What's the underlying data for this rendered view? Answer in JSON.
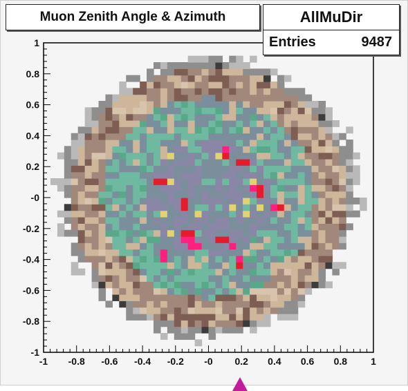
{
  "title": "Muon Zenith Angle & Azimuth",
  "stats": {
    "name": "AllMuDir",
    "entries_label": "Entries",
    "entries_value": "9487"
  },
  "colors": {
    "background": "#f5f5f5",
    "frame": "#000000",
    "level_palette": [
      "#3c3c3c",
      "#8e8e8e",
      "#b9b9b9",
      "#7e5e52",
      "#a2887a",
      "#cdb69a",
      "#d8c4ac",
      "#5aa88a",
      "#6fb9a0",
      "#7a8e9c",
      "#8a86a6",
      "#e2d272",
      "#e41c2c",
      "#ff2080"
    ]
  },
  "chart_data": {
    "type": "heatmap",
    "title": "Muon Zenith Angle & Azimuth",
    "xlabel": "",
    "ylabel": "",
    "xlim": [
      -1,
      1
    ],
    "ylim": [
      -1,
      1
    ],
    "x_ticks": [
      "-1",
      "-0.8",
      "-0.6",
      "-0.4",
      "-0.2",
      "-0",
      "0.2",
      "0.4",
      "0.6",
      "0.8",
      "1"
    ],
    "y_ticks": [
      "-1",
      "-0.8",
      "-0.6",
      "-0.4",
      "-0.2",
      "-0",
      "0.2",
      "0.4",
      "0.6",
      "0.8",
      "1"
    ],
    "x_tick_values": [
      -1,
      -0.8,
      -0.6,
      -0.4,
      -0.2,
      0,
      0.2,
      0.4,
      0.6,
      0.8,
      1
    ],
    "y_tick_values": [
      -1,
      -0.8,
      -0.6,
      -0.4,
      -0.2,
      0,
      0.2,
      0.4,
      0.6,
      0.8,
      1
    ],
    "entries": 9487,
    "distribution_radius": 0.9,
    "hotspots": [
      {
        "x": 0.1,
        "y": 0.3
      },
      {
        "x": 0.2,
        "y": 0.22
      },
      {
        "x": -0.28,
        "y": 0.1
      },
      {
        "x": -0.14,
        "y": -0.05
      },
      {
        "x": -0.12,
        "y": -0.25
      },
      {
        "x": 0.08,
        "y": -0.28
      },
      {
        "x": 0.42,
        "y": -0.05
      },
      {
        "x": 0.15,
        "y": -0.32
      },
      {
        "x": -0.08,
        "y": -0.3
      },
      {
        "x": 0.3,
        "y": 0.05
      },
      {
        "x": -0.28,
        "y": -0.38
      },
      {
        "x": 0.2,
        "y": -0.42
      }
    ],
    "grid": false,
    "legend": "none"
  }
}
